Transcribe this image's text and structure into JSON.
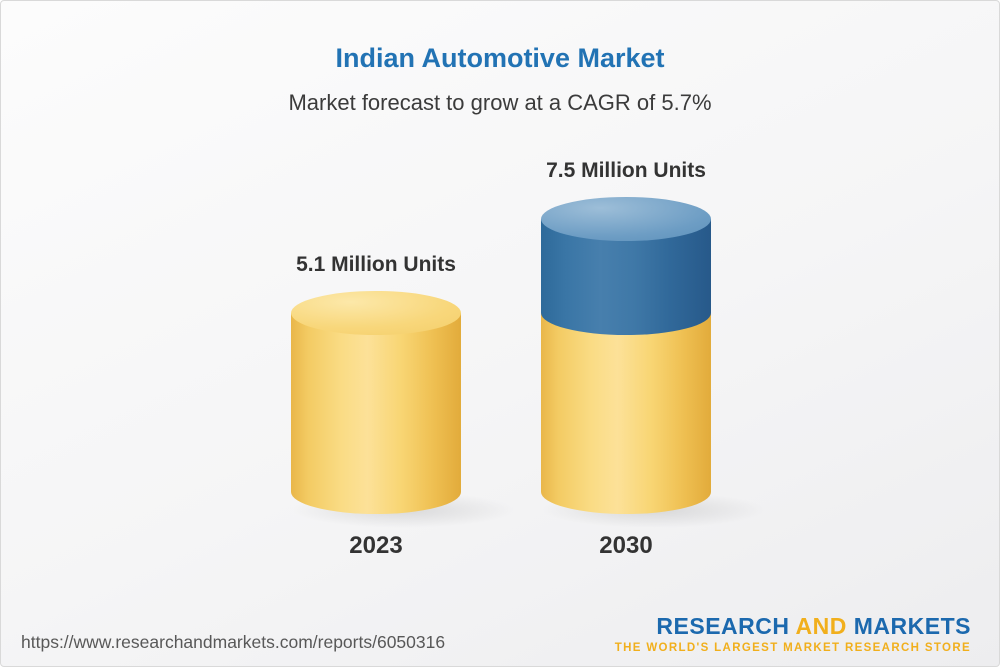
{
  "header": {
    "title": "Indian Automotive Market",
    "subtitle": "Market forecast to grow at a CAGR of 5.7%"
  },
  "chart_data": {
    "type": "bar",
    "title": "Indian Automotive Market",
    "subtitle": "Market forecast to grow at a CAGR of 5.7%",
    "cagr_percent": 5.7,
    "categories": [
      "2023",
      "2030"
    ],
    "values": [
      5.1,
      7.5
    ],
    "value_labels": [
      "5.1 Million Units",
      "7.5 Million Units"
    ],
    "unit": "Million Units",
    "ylim": [
      0,
      7.5
    ],
    "grid": false,
    "legend": false,
    "growth_segment": {
      "category": "2030",
      "from": 5.1,
      "to": 7.5
    },
    "colors": {
      "base_segment": "#F6CD62",
      "growth_segment": "#36709F",
      "title": "#2273B4"
    }
  },
  "footer": {
    "url": "https://www.researchandmarkets.com/reports/6050316",
    "logo": {
      "word1": "RESEARCH",
      "word2": "AND",
      "word3": "MARKETS",
      "tagline": "THE WORLD'S LARGEST MARKET RESEARCH STORE"
    }
  }
}
